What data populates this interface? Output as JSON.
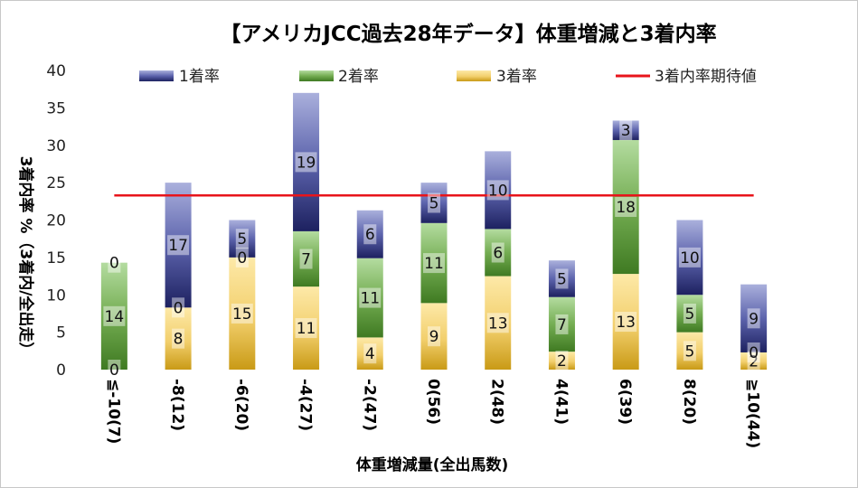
{
  "chart_data": {
    "type": "bar",
    "stacked": true,
    "title": "【アメリカJCC過去28年データ】体重増減と3着内率",
    "xlabel": "体重増減量(全出馬数)",
    "ylabel": "3着内率 %（3着内/全出走）",
    "ylim": [
      0,
      40
    ],
    "yticks": [
      0,
      5,
      10,
      15,
      20,
      25,
      30,
      35,
      40
    ],
    "categories": [
      "≦-10(7)",
      "-8(12)",
      "-6(20)",
      "-4(27)",
      "-2(47)",
      "0(56)",
      "2(48)",
      "4(41)",
      "6(39)",
      "8(20)",
      "≧10(44)"
    ],
    "series": [
      {
        "name": "3着率",
        "key": "third",
        "color": "#d9a520",
        "values": [
          0,
          8.3,
          15.0,
          11.1,
          4.3,
          8.9,
          12.5,
          2.4,
          12.8,
          5.0,
          2.3
        ],
        "labels": [
          "0",
          "8",
          "15",
          "11",
          "4",
          "9",
          "13",
          "2",
          "13",
          "5",
          "2"
        ]
      },
      {
        "name": "2着率",
        "key": "second",
        "color": "#4f8a2c",
        "values": [
          14.3,
          0,
          0,
          7.4,
          10.6,
          10.7,
          6.3,
          7.3,
          17.9,
          5.0,
          0
        ],
        "labels": [
          "14",
          "0",
          "0",
          "7",
          "11",
          "11",
          "6",
          "7",
          "18",
          "5",
          "0"
        ]
      },
      {
        "name": "1着率",
        "key": "first",
        "color": "#2b2f7a",
        "values": [
          0,
          16.7,
          5.0,
          18.5,
          6.4,
          5.4,
          10.4,
          4.9,
          2.6,
          10.0,
          9.1
        ],
        "labels": [
          "0",
          "17",
          "5",
          "19",
          "6",
          "5",
          "10",
          "5",
          "3",
          "10",
          "9"
        ]
      }
    ],
    "reference_line": {
      "name": "3着内率期待値",
      "value": 23.3,
      "color": "#e8141b"
    },
    "legend": [
      "1着率",
      "2着率",
      "3着率",
      "3着内率期待値"
    ],
    "legend_position": "top",
    "grid": false
  }
}
